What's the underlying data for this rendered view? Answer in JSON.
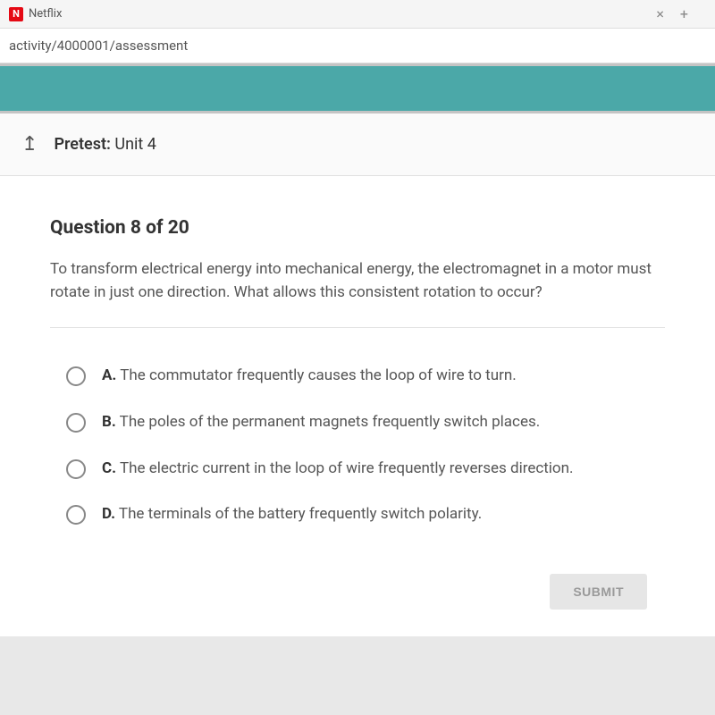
{
  "browser": {
    "tab_icon_letter": "N",
    "tab_label_fragment": "Netflix",
    "close_glyph": "×",
    "plus_glyph": "+",
    "url_fragment": "activity/4000001/assessment"
  },
  "header": {
    "back_glyph": "↥",
    "pretest_prefix": "Pretest:",
    "pretest_unit": "Unit 4"
  },
  "question": {
    "title": "Question 8 of 20",
    "prompt": "To transform electrical energy into mechanical energy, the electromagnet in a motor must rotate in just one direction. What allows this consistent rotation to occur?",
    "options": [
      {
        "letter": "A.",
        "text": "The commutator frequently causes the loop of wire to turn."
      },
      {
        "letter": "B.",
        "text": "The poles of the permanent magnets frequently switch places."
      },
      {
        "letter": "C.",
        "text": "The electric current in the loop of wire frequently reverses direction."
      },
      {
        "letter": "D.",
        "text": "The terminals of the battery frequently switch polarity."
      }
    ],
    "submit_label": "SUBMIT"
  },
  "colors": {
    "teal": "#4ba8a8",
    "netflix_red": "#e50914",
    "background": "#e8e8e8"
  }
}
